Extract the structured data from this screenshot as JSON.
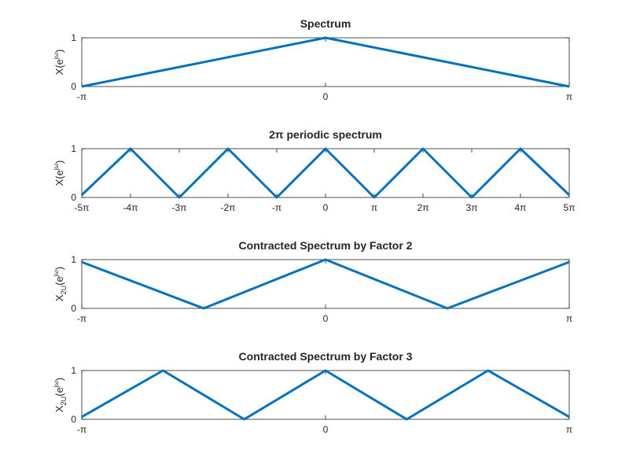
{
  "chart_data": [
    {
      "type": "line",
      "title": "Spectrum",
      "ylabel_main": "X(e",
      "ylabel_sub": "",
      "ylabel_sup": "jω",
      "ylabel_close": ")",
      "xlim": [
        -3.14159,
        3.14159
      ],
      "ylim": [
        0,
        1
      ],
      "xticks": [
        -3.14159,
        0,
        3.14159
      ],
      "xtick_labels": [
        "-π",
        "0",
        "π"
      ],
      "yticks": [
        0,
        1
      ],
      "ytick_labels": [
        "0",
        "1"
      ],
      "grid": false,
      "series": [
        {
          "x": [
            -3.14159,
            0,
            3.14159
          ],
          "y": [
            0,
            1,
            0
          ]
        }
      ]
    },
    {
      "type": "line",
      "title": "2π periodic spectrum",
      "ylabel_main": "X(e",
      "ylabel_sub": "",
      "ylabel_sup": "jω",
      "ylabel_close": ")",
      "xlim": [
        -15.708,
        15.708
      ],
      "ylim": [
        0,
        1
      ],
      "xticks": [
        -15.708,
        -12.566,
        -9.425,
        -6.283,
        -3.1416,
        0,
        3.1416,
        6.283,
        9.425,
        12.566,
        15.708
      ],
      "xtick_labels": [
        "-5π",
        "-4π",
        "-3π",
        "-2π",
        "-π",
        "0",
        "π",
        "2π",
        "3π",
        "4π",
        "5π"
      ],
      "yticks": [
        0,
        1
      ],
      "ytick_labels": [
        "0",
        "1"
      ],
      "grid": false,
      "series": [
        {
          "x": [
            -15.708,
            -12.566,
            -9.425,
            -6.283,
            -3.1416,
            0,
            3.1416,
            6.283,
            9.425,
            12.566,
            15.708
          ],
          "y": [
            0.05,
            1,
            0,
            1,
            0,
            1,
            0,
            1,
            0,
            1,
            0.05
          ]
        }
      ]
    },
    {
      "type": "line",
      "title": "Contracted Spectrum by Factor 2",
      "ylabel_main": "X",
      "ylabel_sub": "2U",
      "ylabel_sup": "jω",
      "ylabel_close": ")",
      "ylabel_open": "(e",
      "xlim": [
        -3.14159,
        3.14159
      ],
      "ylim": [
        0,
        1
      ],
      "xticks": [
        -3.14159,
        0,
        3.14159
      ],
      "xtick_labels": [
        "-π",
        "0",
        "π"
      ],
      "yticks": [
        0,
        1
      ],
      "ytick_labels": [
        "0",
        "1"
      ],
      "grid": false,
      "series": [
        {
          "x": [
            -3.14159,
            -1.5708,
            0,
            1.5708,
            3.14159
          ],
          "y": [
            0.95,
            0,
            1,
            0,
            0.95
          ]
        }
      ]
    },
    {
      "type": "line",
      "title": "Contracted Spectrum by Factor 3",
      "ylabel_main": "X",
      "ylabel_sub": "2U",
      "ylabel_sup": "jω",
      "ylabel_close": ")",
      "ylabel_open": "(e",
      "xlim": [
        -3.14159,
        3.14159
      ],
      "ylim": [
        0,
        1
      ],
      "xticks": [
        -3.14159,
        0,
        3.14159
      ],
      "xtick_labels": [
        "-π",
        "0",
        "π"
      ],
      "yticks": [
        0,
        1
      ],
      "ytick_labels": [
        "0",
        "1"
      ],
      "grid": false,
      "series": [
        {
          "x": [
            -3.14159,
            -2.0944,
            -1.0472,
            0,
            1.0472,
            2.0944,
            3.14159
          ],
          "y": [
            0.05,
            1,
            0,
            1,
            0,
            1,
            0.05
          ]
        }
      ]
    }
  ],
  "colors": {
    "series": "#0072BD",
    "axes": "#262626"
  }
}
